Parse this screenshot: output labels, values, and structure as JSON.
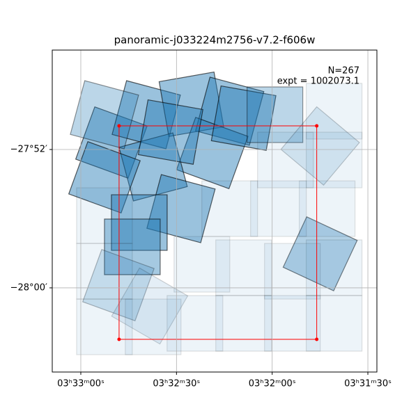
{
  "chart_data": {
    "type": "footprint",
    "title": "panoramic-j033224m2756-v7.2-f606w",
    "annotations": [
      "N=267",
      "expt = 1002073.1"
    ],
    "xlim": [
      53.2873,
      52.8632
    ],
    "ylim": [
      -28.0811,
      -27.7709
    ],
    "xticks": [
      {
        "value": 53.25,
        "label": "03ʰ33ᵐ00ˢ"
      },
      {
        "value": 53.125,
        "label": "03ʰ32ᵐ30ˢ"
      },
      {
        "value": 53.0,
        "label": "03ʰ32ᵐ00ˢ"
      },
      {
        "value": 52.875,
        "label": "03ʰ31ᵐ30ˢ"
      }
    ],
    "yticks": [
      {
        "value": -27.8667,
        "label": "−27°52′"
      },
      {
        "value": -28.0,
        "label": "−28°00′"
      }
    ],
    "grid": true,
    "footprint_color": "#1f77b4",
    "footprint_size": 0.0536,
    "footprints": [
      {
        "ra": 53.21,
        "dec": -27.86,
        "angle": 20,
        "alpha": 0.45
      },
      {
        "ra": 53.1645,
        "dec": -27.8332,
        "angle": 15,
        "alpha": 0.45
      },
      {
        "ra": 53.1055,
        "dec": -27.8231,
        "angle": -10,
        "alpha": 0.45
      },
      {
        "ra": 53.0555,
        "dec": -27.8298,
        "angle": 15,
        "alpha": 0.45
      },
      {
        "ra": 53.0782,
        "dec": -27.8701,
        "angle": 20,
        "alpha": 0.45
      },
      {
        "ra": 53.1555,
        "dec": -27.8835,
        "angle": -15,
        "alpha": 0.45
      },
      {
        "ra": 53.2191,
        "dec": -27.8935,
        "angle": 20,
        "alpha": 0.45
      },
      {
        "ra": 53.1191,
        "dec": -27.9237,
        "angle": 15,
        "alpha": 0.45
      },
      {
        "ra": 53.1736,
        "dec": -27.9371,
        "angle": 0,
        "alpha": 0.45
      },
      {
        "ra": 53.1827,
        "dec": -27.9605,
        "angle": 0,
        "alpha": 0.4
      },
      {
        "ra": 53.1327,
        "dec": -27.8499,
        "angle": 10,
        "alpha": 0.45
      },
      {
        "ra": 53.0373,
        "dec": -27.8365,
        "angle": 10,
        "alpha": 0.45
      },
      {
        "ra": 53.2191,
        "dec": -27.8332,
        "angle": 15,
        "alpha": 0.3
      },
      {
        "ra": 52.9964,
        "dec": -27.8332,
        "angle": 0,
        "alpha": 0.3
      },
      {
        "ra": 52.9373,
        "dec": -27.8633,
        "angle": 40,
        "alpha": 0.15
      },
      {
        "ra": 52.9373,
        "dec": -27.9672,
        "angle": 25,
        "alpha": 0.35
      },
      {
        "ra": 53.2009,
        "dec": -27.9974,
        "angle": 20,
        "alpha": 0.2
      },
      {
        "ra": 53.16,
        "dec": -28.0175,
        "angle": 30,
        "alpha": 0.12
      },
      {
        "ra": 52.9191,
        "dec": -27.8298,
        "angle": 0,
        "alpha": 0.08
      },
      {
        "ra": 52.9191,
        "dec": -27.8768,
        "angle": 0,
        "alpha": 0.08
      },
      {
        "ra": 52.9282,
        "dec": -27.9237,
        "angle": 0,
        "alpha": 0.08
      },
      {
        "ra": 52.9918,
        "dec": -27.9237,
        "angle": 0,
        "alpha": 0.08
      },
      {
        "ra": 53.0555,
        "dec": -27.9237,
        "angle": 0,
        "alpha": 0.08
      },
      {
        "ra": 53.0373,
        "dec": -27.9806,
        "angle": 0,
        "alpha": 0.08
      },
      {
        "ra": 52.9191,
        "dec": -27.9806,
        "angle": 0,
        "alpha": 0.08
      },
      {
        "ra": 52.9736,
        "dec": -27.984,
        "angle": 0,
        "alpha": 0.08
      },
      {
        "ra": 53.2191,
        "dec": -28.0376,
        "angle": 0,
        "alpha": 0.08
      },
      {
        "ra": 53.1555,
        "dec": -28.0376,
        "angle": 0,
        "alpha": 0.08
      },
      {
        "ra": 53.1009,
        "dec": -28.0342,
        "angle": 0,
        "alpha": 0.08
      },
      {
        "ra": 53.0373,
        "dec": -28.0342,
        "angle": 0,
        "alpha": 0.08
      },
      {
        "ra": 52.9736,
        "dec": -28.0342,
        "angle": 0,
        "alpha": 0.08
      },
      {
        "ra": 52.9191,
        "dec": -28.0342,
        "angle": 0,
        "alpha": 0.08
      },
      {
        "ra": 53.2191,
        "dec": -27.9304,
        "angle": 0,
        "alpha": 0.08
      },
      {
        "ra": 53.2191,
        "dec": -27.984,
        "angle": 0,
        "alpha": 0.08
      },
      {
        "ra": 52.9827,
        "dec": -27.8768,
        "angle": 0,
        "alpha": 0.08
      },
      {
        "ra": 53.0918,
        "dec": -27.9773,
        "angle": 0,
        "alpha": 0.08
      }
    ],
    "region": {
      "color": "#ff0000",
      "ra": [
        53.2,
        52.9418,
        52.9418,
        53.2
      ],
      "dec": [
        -27.8439,
        -27.8439,
        -28.0496,
        -28.0496
      ]
    }
  }
}
